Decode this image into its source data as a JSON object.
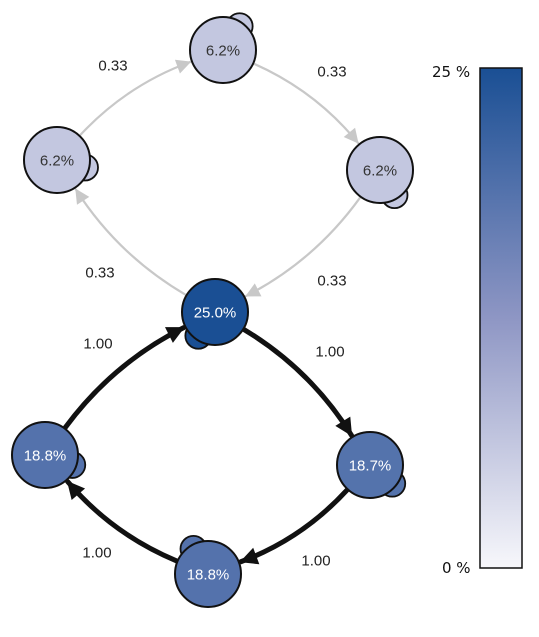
{
  "diagram": {
    "nodes": [
      {
        "id": "top",
        "label": "6.2%",
        "value": 6.2
      },
      {
        "id": "left",
        "label": "6.2%",
        "value": 6.2
      },
      {
        "id": "right",
        "label": "6.2%",
        "value": 6.2
      },
      {
        "id": "center",
        "label": "25.0%",
        "value": 25.0
      },
      {
        "id": "lower-left",
        "label": "18.8%",
        "value": 18.8
      },
      {
        "id": "lower-right",
        "label": "18.7%",
        "value": 18.7
      },
      {
        "id": "bottom",
        "label": "18.8%",
        "value": 18.8
      }
    ],
    "edges": [
      {
        "from": "left",
        "to": "top",
        "label": "0.33",
        "weight": 0.33
      },
      {
        "from": "top",
        "to": "right",
        "label": "0.33",
        "weight": 0.33
      },
      {
        "from": "right",
        "to": "center",
        "label": "0.33",
        "weight": 0.33
      },
      {
        "from": "center",
        "to": "left",
        "label": "0.33",
        "weight": 0.33
      },
      {
        "from": "center",
        "to": "lower-right",
        "label": "1.00",
        "weight": 1.0
      },
      {
        "from": "lower-right",
        "to": "bottom",
        "label": "1.00",
        "weight": 1.0
      },
      {
        "from": "bottom",
        "to": "lower-left",
        "label": "1.00",
        "weight": 1.0
      },
      {
        "from": "lower-left",
        "to": "center",
        "label": "1.00",
        "weight": 1.0
      }
    ]
  },
  "colorbar": {
    "max_label": "25 %",
    "min_label": "0 %",
    "max_value": 25,
    "min_value": 0,
    "color_high": "#1a4f94",
    "color_low": "#f7f7fb"
  },
  "colors": {
    "weak_edge": "#c8c8c8",
    "strong_edge": "#111111",
    "node_outline": "#111111",
    "light_text": "#333333",
    "dark_text": "#ffffff"
  }
}
